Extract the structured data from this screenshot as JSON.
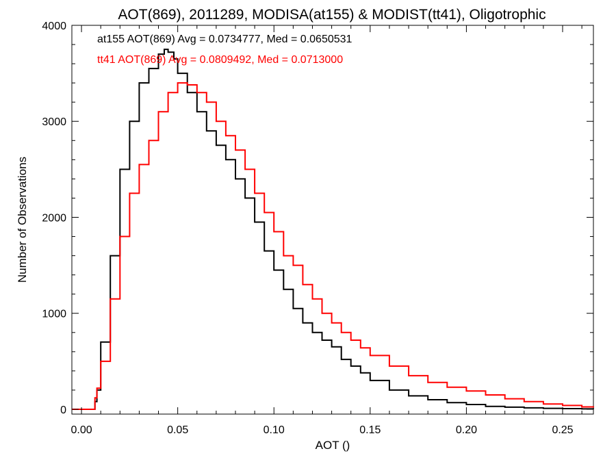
{
  "chart_data": {
    "type": "line",
    "title": "AOT(869), 2011289, MODISA(at155) & MODIST(tt41), Oligotrophic",
    "xlabel": "AOT ()",
    "ylabel": "Number of Observations",
    "xlim": [
      -0.005,
      0.266
    ],
    "ylim": [
      -50,
      4000
    ],
    "x_ticks": [
      0.0,
      0.05,
      0.1,
      0.15,
      0.2,
      0.25
    ],
    "x_tick_labels": [
      "0.00",
      "0.05",
      "0.10",
      "0.15",
      "0.20",
      "0.25"
    ],
    "y_ticks": [
      0,
      1000,
      2000,
      3000,
      4000
    ],
    "y_tick_labels": [
      "0",
      "1000",
      "2000",
      "3000",
      "4000"
    ],
    "grid": false,
    "legend_placement": "top-left",
    "series": [
      {
        "name": "at155 AOT(869) Avg = 0.0734777, Med = 0.0650531",
        "color": "#000000",
        "step": true,
        "x": [
          -0.005,
          0.0,
          0.005,
          0.007,
          0.008,
          0.01,
          0.015,
          0.02,
          0.025,
          0.03,
          0.035,
          0.04,
          0.043,
          0.045,
          0.048,
          0.05,
          0.055,
          0.06,
          0.065,
          0.07,
          0.075,
          0.08,
          0.085,
          0.09,
          0.095,
          0.1,
          0.105,
          0.11,
          0.115,
          0.12,
          0.125,
          0.13,
          0.135,
          0.14,
          0.145,
          0.15,
          0.16,
          0.17,
          0.18,
          0.19,
          0.2,
          0.21,
          0.22,
          0.23,
          0.24,
          0.25,
          0.26,
          0.266
        ],
        "y": [
          0,
          0,
          0,
          80,
          200,
          700,
          1600,
          2500,
          3000,
          3400,
          3550,
          3700,
          3750,
          3720,
          3650,
          3500,
          3300,
          3100,
          2900,
          2750,
          2600,
          2400,
          2200,
          1950,
          1650,
          1450,
          1250,
          1050,
          900,
          800,
          720,
          650,
          520,
          450,
          380,
          300,
          200,
          140,
          100,
          70,
          50,
          30,
          22,
          15,
          10,
          7,
          4,
          3
        ]
      },
      {
        "name": "tt41 AOT(869) Avg = 0.0809492, Med = 0.0713000",
        "color": "#ff0000",
        "step": true,
        "x": [
          -0.005,
          0.0,
          0.005,
          0.007,
          0.008,
          0.01,
          0.015,
          0.02,
          0.025,
          0.03,
          0.035,
          0.04,
          0.045,
          0.05,
          0.055,
          0.06,
          0.065,
          0.07,
          0.075,
          0.08,
          0.085,
          0.09,
          0.095,
          0.1,
          0.105,
          0.11,
          0.115,
          0.12,
          0.125,
          0.13,
          0.135,
          0.14,
          0.145,
          0.15,
          0.16,
          0.17,
          0.18,
          0.19,
          0.2,
          0.21,
          0.22,
          0.23,
          0.24,
          0.25,
          0.26,
          0.266
        ],
        "y": [
          0,
          0,
          0,
          120,
          220,
          500,
          1150,
          1800,
          2250,
          2550,
          2800,
          3100,
          3300,
          3400,
          3380,
          3300,
          3200,
          3000,
          2850,
          2700,
          2500,
          2250,
          2050,
          1850,
          1600,
          1500,
          1300,
          1150,
          1000,
          900,
          800,
          720,
          640,
          560,
          450,
          350,
          280,
          230,
          190,
          150,
          110,
          80,
          55,
          40,
          25,
          18
        ]
      }
    ]
  }
}
